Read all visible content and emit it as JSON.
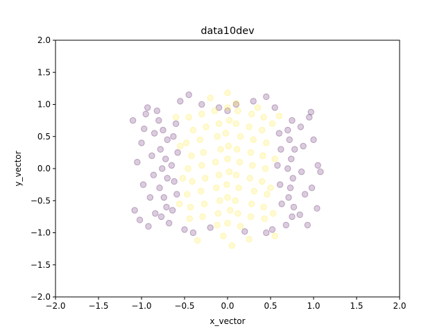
{
  "chart_data": {
    "type": "scatter",
    "title": "data10dev",
    "xlabel": "x_vector",
    "ylabel": "y_vector",
    "xlim": [
      -2.0,
      2.0
    ],
    "ylim": [
      -2.0,
      2.0
    ],
    "xticks": [
      "−2.0",
      "−1.5",
      "−1.0",
      "−0.5",
      "0.0",
      "0.5",
      "1.0",
      "1.5",
      "2.0"
    ],
    "yticks": [
      "−2.0",
      "−1.5",
      "−1.0",
      "−0.5",
      "0.0",
      "0.5",
      "1.0",
      "1.5",
      "2.0"
    ],
    "grid": false,
    "legend": "none",
    "marker_alpha": 0.2,
    "colors": {
      "class_0": "#440154",
      "class_1": "#fde725"
    },
    "series": [
      {
        "class": 0,
        "color": "#440154",
        "points": [
          [
            -0.8,
            0.75
          ],
          [
            -0.75,
            0.6
          ],
          [
            -0.7,
            0.45
          ],
          [
            -0.78,
            0.3
          ],
          [
            -0.72,
            0.15
          ],
          [
            -0.76,
            0.0
          ],
          [
            -0.7,
            -0.15
          ],
          [
            -0.79,
            -0.3
          ],
          [
            -0.74,
            -0.45
          ],
          [
            -0.71,
            -0.6
          ],
          [
            -0.77,
            -0.75
          ],
          [
            -0.68,
            -0.85
          ],
          [
            -0.6,
            0.7
          ],
          [
            -0.63,
            0.5
          ],
          [
            -0.58,
            0.25
          ],
          [
            -0.65,
            0.05
          ],
          [
            -0.62,
            -0.2
          ],
          [
            -0.59,
            -0.4
          ],
          [
            -0.64,
            -0.65
          ],
          [
            -0.85,
            0.55
          ],
          [
            -0.88,
            0.2
          ],
          [
            -0.86,
            -0.1
          ],
          [
            -0.9,
            -0.45
          ],
          [
            -0.84,
            -0.7
          ],
          [
            -0.95,
            0.85
          ],
          [
            -1.0,
            0.4
          ],
          [
            -1.05,
            0.1
          ],
          [
            -0.98,
            -0.25
          ],
          [
            -1.08,
            -0.65
          ],
          [
            -1.02,
            -0.8
          ],
          [
            -0.93,
            0.95
          ],
          [
            -0.55,
            1.05
          ],
          [
            -0.45,
            1.15
          ],
          [
            -0.3,
            1.0
          ],
          [
            -0.92,
            -0.9
          ],
          [
            -0.5,
            -0.95
          ],
          [
            -0.4,
            -1.0
          ],
          [
            -1.1,
            0.75
          ],
          [
            -0.97,
            0.62
          ],
          [
            -0.82,
            0.9
          ],
          [
            0.75,
            0.75
          ],
          [
            0.7,
            0.6
          ],
          [
            0.72,
            0.45
          ],
          [
            0.78,
            0.3
          ],
          [
            0.74,
            0.15
          ],
          [
            0.7,
            0.0
          ],
          [
            0.76,
            -0.15
          ],
          [
            0.73,
            -0.3
          ],
          [
            0.71,
            -0.45
          ],
          [
            0.77,
            -0.6
          ],
          [
            0.75,
            -0.75
          ],
          [
            0.68,
            -0.88
          ],
          [
            0.6,
            0.55
          ],
          [
            0.62,
            0.3
          ],
          [
            0.58,
            0.05
          ],
          [
            0.61,
            -0.25
          ],
          [
            0.63,
            -0.55
          ],
          [
            0.85,
            0.65
          ],
          [
            0.88,
            0.35
          ],
          [
            0.86,
            -0.05
          ],
          [
            0.9,
            -0.4
          ],
          [
            0.84,
            -0.72
          ],
          [
            0.95,
            0.8
          ],
          [
            1.0,
            0.45
          ],
          [
            1.05,
            0.05
          ],
          [
            0.98,
            -0.3
          ],
          [
            1.04,
            -0.62
          ],
          [
            0.93,
            -0.88
          ],
          [
            0.45,
            1.12
          ],
          [
            0.3,
            1.05
          ],
          [
            0.55,
            0.95
          ],
          [
            0.45,
            -1.0
          ],
          [
            0.52,
            -0.95
          ],
          [
            1.08,
            -0.05
          ],
          [
            0.97,
            0.88
          ],
          [
            0.1,
            1.0
          ],
          [
            -0.1,
            0.95
          ],
          [
            0.2,
            -0.98
          ],
          [
            -0.2,
            -0.92
          ],
          [
            0.0,
            0.9
          ]
        ]
      },
      {
        "class": 1,
        "color": "#fde725",
        "points": [
          [
            -0.45,
            0.8
          ],
          [
            -0.4,
            0.6
          ],
          [
            -0.48,
            0.4
          ],
          [
            -0.42,
            0.2
          ],
          [
            -0.46,
            0.0
          ],
          [
            -0.41,
            -0.2
          ],
          [
            -0.47,
            -0.4
          ],
          [
            -0.43,
            -0.6
          ],
          [
            -0.44,
            -0.78
          ],
          [
            -0.3,
            0.85
          ],
          [
            -0.25,
            0.65
          ],
          [
            -0.32,
            0.45
          ],
          [
            -0.28,
            0.25
          ],
          [
            -0.3,
            0.05
          ],
          [
            -0.26,
            -0.15
          ],
          [
            -0.31,
            -0.35
          ],
          [
            -0.27,
            -0.55
          ],
          [
            -0.29,
            -0.75
          ],
          [
            -0.15,
            0.9
          ],
          [
            -0.1,
            0.7
          ],
          [
            -0.12,
            0.5
          ],
          [
            -0.08,
            0.3
          ],
          [
            -0.14,
            0.1
          ],
          [
            -0.1,
            -0.1
          ],
          [
            -0.13,
            -0.3
          ],
          [
            -0.09,
            -0.5
          ],
          [
            -0.11,
            -0.7
          ],
          [
            -0.12,
            -0.88
          ],
          [
            0.0,
            0.95
          ],
          [
            0.02,
            0.75
          ],
          [
            -0.02,
            0.55
          ],
          [
            0.01,
            0.35
          ],
          [
            0.0,
            0.15
          ],
          [
            0.02,
            -0.05
          ],
          [
            -0.01,
            -0.25
          ],
          [
            0.0,
            -0.45
          ],
          [
            0.03,
            -0.65
          ],
          [
            0.0,
            -0.85
          ],
          [
            0.12,
            0.9
          ],
          [
            0.1,
            0.7
          ],
          [
            0.15,
            0.5
          ],
          [
            0.11,
            0.3
          ],
          [
            0.14,
            0.1
          ],
          [
            0.1,
            -0.1
          ],
          [
            0.13,
            -0.3
          ],
          [
            0.09,
            -0.5
          ],
          [
            0.12,
            -0.7
          ],
          [
            0.15,
            -0.9
          ],
          [
            0.28,
            0.85
          ],
          [
            0.25,
            0.65
          ],
          [
            0.3,
            0.45
          ],
          [
            0.27,
            0.25
          ],
          [
            0.29,
            0.05
          ],
          [
            0.26,
            -0.15
          ],
          [
            0.31,
            -0.35
          ],
          [
            0.28,
            -0.55
          ],
          [
            0.27,
            -0.75
          ],
          [
            0.42,
            0.8
          ],
          [
            0.4,
            0.6
          ],
          [
            0.45,
            0.4
          ],
          [
            0.41,
            0.2
          ],
          [
            0.44,
            0.0
          ],
          [
            0.4,
            -0.2
          ],
          [
            0.46,
            -0.4
          ],
          [
            0.42,
            -0.6
          ],
          [
            0.43,
            -0.78
          ],
          [
            -0.55,
            0.35
          ],
          [
            -0.52,
            -0.15
          ],
          [
            -0.56,
            -0.55
          ],
          [
            0.52,
            0.7
          ],
          [
            0.55,
            0.15
          ],
          [
            0.5,
            -0.3
          ],
          [
            0.53,
            -0.7
          ],
          [
            -0.2,
            1.1
          ],
          [
            0.0,
            1.18
          ],
          [
            0.1,
            1.02
          ],
          [
            0.35,
            0.95
          ],
          [
            -0.05,
            -1.05
          ],
          [
            0.05,
            -1.2
          ],
          [
            -0.35,
            -1.12
          ],
          [
            0.25,
            -1.1
          ],
          [
            0.55,
            -1.05
          ],
          [
            -0.6,
            0.8
          ],
          [
            0.6,
            0.82
          ]
        ]
      }
    ]
  }
}
